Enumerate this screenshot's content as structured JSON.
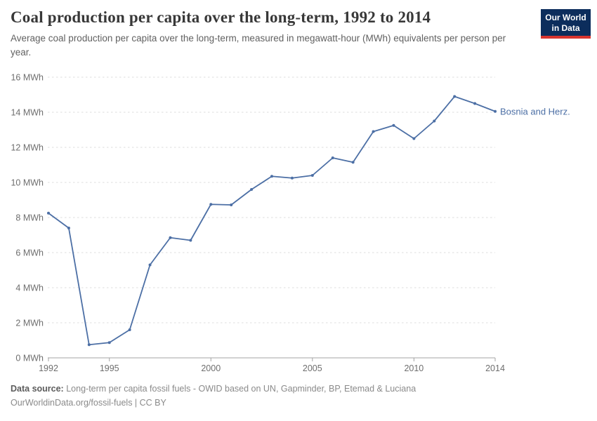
{
  "header": {
    "title": "Coal production per capita over the long-term, 1992 to 2014",
    "subtitle": "Average coal production per capita over the long-term, measured in megawatt-hour (MWh) equivalents per person per year."
  },
  "logo": {
    "line1": "Our World",
    "line2": "in Data",
    "bg_color": "#0c2d5c",
    "stripe_color": "#d8352f"
  },
  "chart_data": {
    "type": "line",
    "title": "Coal production per capita over the long-term, 1992 to 2014",
    "x": [
      1992,
      1993,
      1994,
      1995,
      1996,
      1997,
      1998,
      1999,
      2000,
      2001,
      2002,
      2003,
      2004,
      2005,
      2006,
      2007,
      2008,
      2009,
      2010,
      2011,
      2012,
      2013,
      2014
    ],
    "series": [
      {
        "name": "Bosnia and Herz.",
        "values": [
          8.25,
          7.4,
          0.75,
          0.87,
          1.6,
          5.3,
          6.85,
          6.7,
          8.75,
          8.72,
          9.6,
          10.35,
          10.25,
          10.4,
          11.4,
          11.15,
          12.9,
          13.25,
          12.5,
          13.5,
          14.9,
          14.5,
          14.05
        ]
      }
    ],
    "xlim": [
      1992,
      2014
    ],
    "ylim": [
      0,
      16
    ],
    "yticks": [
      0,
      2,
      4,
      6,
      8,
      10,
      12,
      14,
      16
    ],
    "xticks": [
      1992,
      1995,
      2000,
      2005,
      2010,
      2014
    ],
    "y_unit": "MWh",
    "grid": "horizontal-dashed",
    "legend_position": "end-of-line-label",
    "line_color": "#4c6fa5"
  },
  "footer": {
    "source_label": "Data source:",
    "source_text": "Long-term per capita fossil fuels - OWID based on UN, Gapminder, BP, Etemad & Luciana",
    "license_line": "OurWorldinData.org/fossil-fuels | CC BY"
  }
}
